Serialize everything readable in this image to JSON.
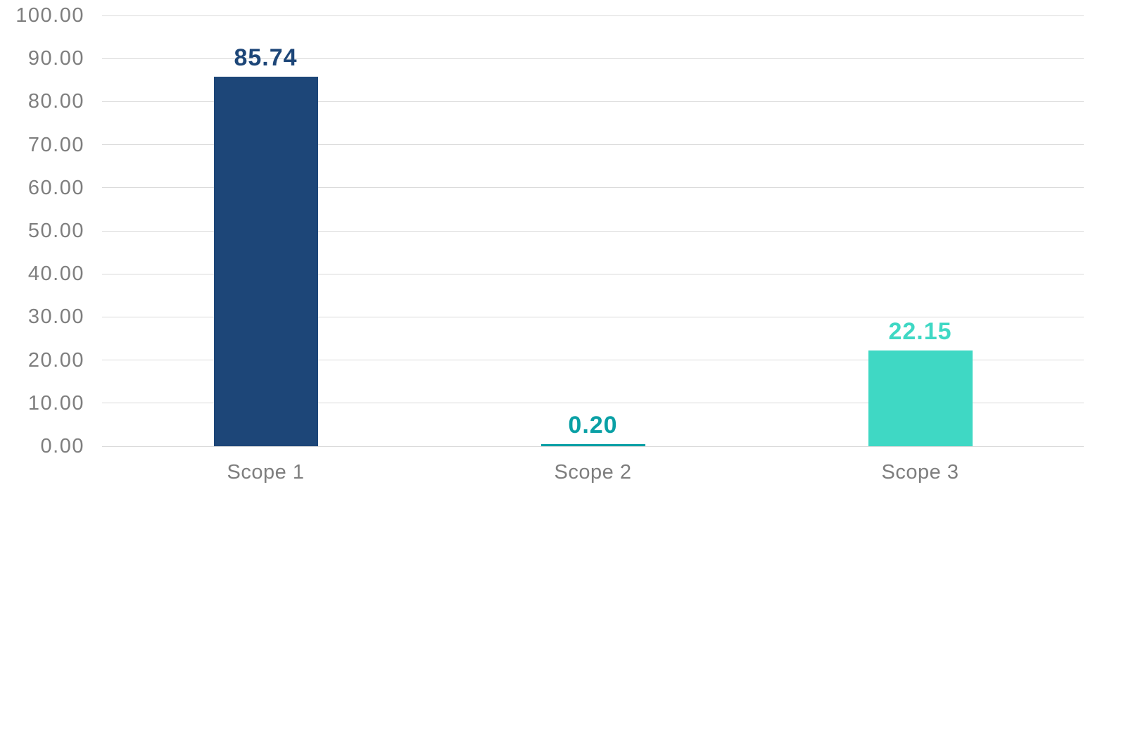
{
  "chart_data": {
    "type": "bar",
    "title": "",
    "xlabel": "",
    "ylabel": "",
    "categories": [
      "Scope 1",
      "Scope 2",
      "Scope 3"
    ],
    "values": [
      85.74,
      0.2,
      22.15
    ],
    "value_labels": [
      "85.74",
      "0.20",
      "22.15"
    ],
    "bar_colors": [
      "#1D4678",
      "#0AA0A5",
      "#3FD8C4"
    ],
    "value_label_colors": [
      "#1D4678",
      "#0AA0A5",
      "#3FD8C4"
    ],
    "ylim": [
      0,
      100
    ],
    "y_ticks": [
      100,
      90,
      80,
      70,
      60,
      50,
      40,
      30,
      20,
      10,
      0
    ],
    "y_tick_labels": [
      "100.00",
      "90.00",
      "80.00",
      "70.00",
      "60.00",
      "50.00",
      "40.00",
      "30.00",
      "20.00",
      "10.00",
      "0.00"
    ],
    "grid": true,
    "legend_position": "none",
    "colors": {
      "axis_text": "#7E7E7E",
      "gridline": "#DADADA",
      "background": "#FFFFFF"
    }
  }
}
